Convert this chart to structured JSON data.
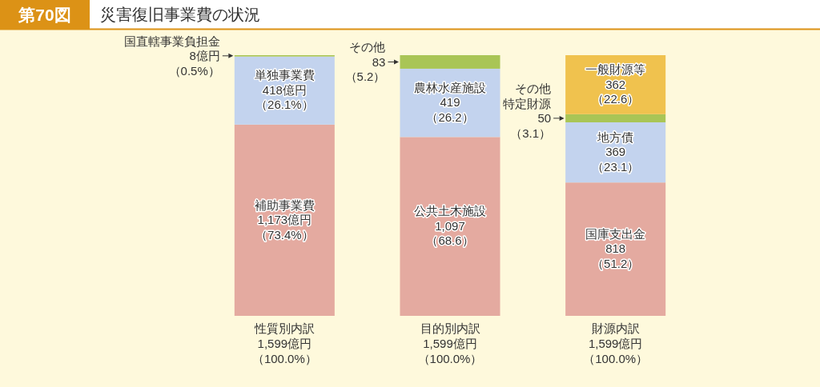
{
  "chart_data": {
    "type": "bar",
    "stacked": true,
    "title": "災害復旧事業費の状況",
    "annotations": [
      "第70図"
    ],
    "categories": [
      "性質別内訳",
      "目的別内訳",
      "財源内訳"
    ],
    "totals": [
      "1,599億円（100.0%）",
      "1,599億円（100.0%）",
      "1,599億円（100.0%）"
    ],
    "series": [
      {
        "name": "補助事業費",
        "color": "#e4aaa0",
        "values": [
          1173,
          null,
          null
        ],
        "value_labels": [
          "1,173億円（73.4%）",
          null,
          null
        ]
      },
      {
        "name": "単独事業費",
        "color": "#c3d3ee",
        "values": [
          418,
          null,
          null
        ],
        "value_labels": [
          "418億円（26.1%）",
          null,
          null
        ]
      },
      {
        "name": "国直轄事業負担金",
        "color": "#a9c556",
        "values": [
          8,
          null,
          null
        ],
        "value_labels": [
          "8億円（0.5%）",
          null,
          null
        ]
      },
      {
        "name": "公共土木施設",
        "color": "#e4aaa0",
        "values": [
          null,
          1097,
          null
        ],
        "value_labels": [
          null,
          "1,097（68.6）",
          null
        ]
      },
      {
        "name": "農林水産施設",
        "color": "#c3d3ee",
        "values": [
          null,
          419,
          null
        ],
        "value_labels": [
          null,
          "419（26.2）",
          null
        ]
      },
      {
        "name": "その他",
        "color": "#a9c556",
        "values": [
          null,
          83,
          null
        ],
        "value_labels": [
          null,
          "83（5.2）",
          null
        ]
      },
      {
        "name": "国庫支出金",
        "color": "#e4aaa0",
        "values": [
          null,
          null,
          818
        ],
        "value_labels": [
          null,
          null,
          "818（51.2）"
        ]
      },
      {
        "name": "地方債",
        "color": "#c3d3ee",
        "values": [
          null,
          null,
          369
        ],
        "value_labels": [
          null,
          null,
          "369（23.1）"
        ]
      },
      {
        "name": "その他特定財源",
        "color": "#a9c556",
        "values": [
          null,
          null,
          50
        ],
        "value_labels": [
          null,
          null,
          "50（3.1）"
        ]
      },
      {
        "name": "一般財源等",
        "color": "#f0c24e",
        "values": [
          null,
          null,
          362
        ],
        "value_labels": [
          null,
          null,
          "362（22.6）"
        ]
      }
    ]
  }
}
